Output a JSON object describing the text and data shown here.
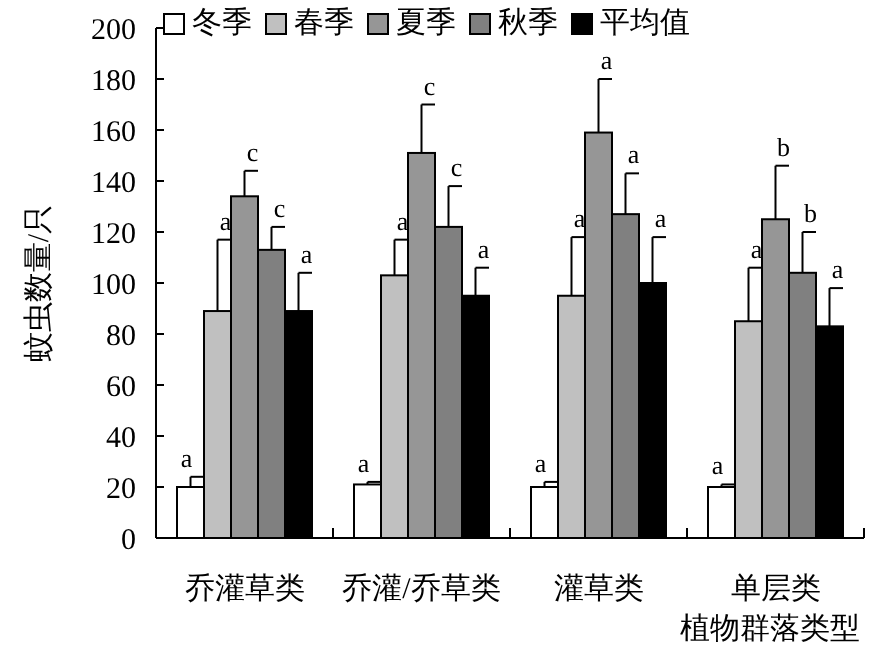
{
  "chart_data": {
    "type": "bar",
    "xlabel": "植物群落类型",
    "ylabel": "蚊虫数量/只",
    "categories": [
      "乔灌草类",
      "乔灌/乔草类",
      "灌草类",
      "单层类"
    ],
    "series": [
      {
        "name": "冬季",
        "color": "#ffffff",
        "values": [
          20,
          21,
          20,
          20
        ],
        "errors": [
          [
            20,
            24
          ],
          [
            21,
            22
          ],
          [
            20,
            22
          ],
          [
            20,
            21
          ]
        ],
        "value_labels": [
          "a",
          "a",
          "a",
          "a"
        ]
      },
      {
        "name": "春季",
        "color": "#c0c0c0",
        "values": [
          89,
          103,
          95,
          85
        ],
        "errors": [
          [
            89,
            117
          ],
          [
            103,
            117
          ],
          [
            95,
            118
          ],
          [
            85,
            106
          ]
        ],
        "value_labels": [
          "a",
          "a",
          "a",
          "a"
        ]
      },
      {
        "name": "夏季",
        "color": "#969696",
        "values": [
          134,
          151,
          159,
          125
        ],
        "errors": [
          [
            134,
            144
          ],
          [
            151,
            170
          ],
          [
            159,
            180
          ],
          [
            125,
            146
          ]
        ],
        "value_labels": [
          "c",
          "c",
          "a",
          "b"
        ]
      },
      {
        "name": "秋季",
        "color": "#808080",
        "values": [
          113,
          122,
          127,
          104
        ],
        "errors": [
          [
            113,
            122
          ],
          [
            122,
            138
          ],
          [
            127,
            143
          ],
          [
            104,
            120
          ]
        ],
        "value_labels": [
          "c",
          "c",
          "a",
          "b"
        ]
      },
      {
        "name": "平均值",
        "color": "#000000",
        "values": [
          89,
          95,
          100,
          83
        ],
        "errors": [
          [
            89,
            104
          ],
          [
            95,
            106
          ],
          [
            100,
            118
          ],
          [
            83,
            98
          ]
        ],
        "value_labels": [
          "a",
          "a",
          "a",
          "a"
        ]
      }
    ],
    "ylim": [
      0,
      200
    ],
    "yticks": [
      0,
      20,
      40,
      60,
      80,
      100,
      120,
      140,
      160,
      180,
      200
    ],
    "grid": false,
    "legend": "top"
  }
}
